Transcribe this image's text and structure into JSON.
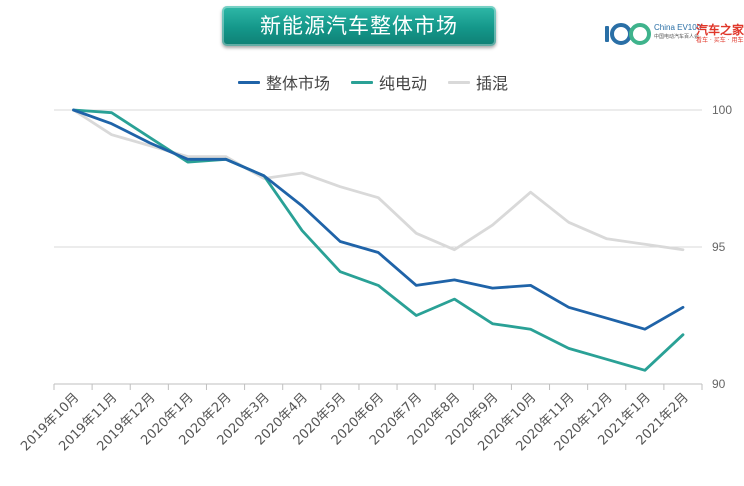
{
  "header": {
    "title": "新能源汽车整体市场",
    "brand_logo_text": "100",
    "brand_china": "China EV100",
    "brand_subtitle": "中国电动汽车百人会",
    "brand_name": "汽车之家",
    "brand_tagline": "看车 · 买车 · 用车",
    "brand_logo_icon": "ev100-logo-icon"
  },
  "colors": {
    "title_banner": "#14978a",
    "series_overall": "#1f63a8",
    "series_bev": "#2aa196",
    "series_phev": "#d9d9d9"
  },
  "chart_data": {
    "type": "line",
    "title": "",
    "xlabel": "",
    "ylabel": "",
    "ylim": [
      90,
      100
    ],
    "yticks": [
      "90",
      "95",
      "100"
    ],
    "grid": "horizontal",
    "legend_position": "top-center",
    "categories": [
      "2019年10月",
      "2019年11月",
      "2019年12月",
      "2020年1月",
      "2020年2月",
      "2020年3月",
      "2020年4月",
      "2020年5月",
      "2020年6月",
      "2020年7月",
      "2020年8月",
      "2020年9月",
      "2020年10月",
      "2020年11月",
      "2020年12月",
      "2021年1月",
      "2021年2月"
    ],
    "series": [
      {
        "name": "整体市场",
        "color": "#1f63a8",
        "values": [
          100,
          99.5,
          98.8,
          98.2,
          98.2,
          97.6,
          96.5,
          95.2,
          94.8,
          93.6,
          93.8,
          93.5,
          93.6,
          92.8,
          92.4,
          92.0,
          92.8
        ]
      },
      {
        "name": "纯电动",
        "color": "#2aa196",
        "values": [
          100,
          99.9,
          99.0,
          98.1,
          98.2,
          97.6,
          95.6,
          94.1,
          93.6,
          92.5,
          93.1,
          92.2,
          92.0,
          91.3,
          90.9,
          90.5,
          91.8
        ]
      },
      {
        "name": "插混",
        "color": "#d9d9d9",
        "values": [
          100,
          99.1,
          98.7,
          98.3,
          98.3,
          97.5,
          97.7,
          97.2,
          96.8,
          95.5,
          94.9,
          95.8,
          97.0,
          95.9,
          95.3,
          95.1,
          94.9
        ]
      }
    ]
  }
}
